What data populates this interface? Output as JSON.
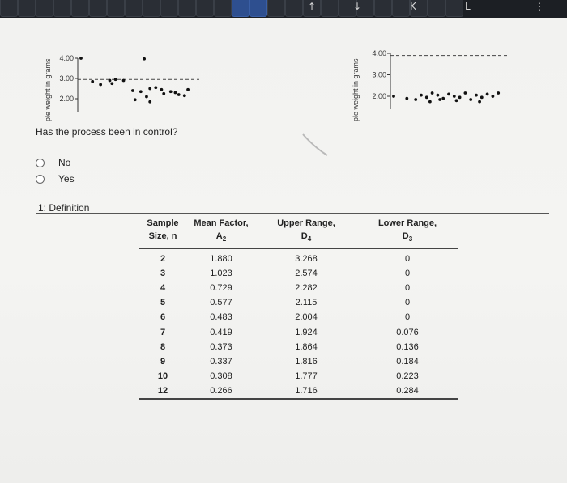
{
  "keyboard": {
    "keys": [
      "",
      "",
      "",
      "",
      "",
      "",
      "",
      "",
      "",
      "",
      "",
      "",
      "",
      "",
      "",
      "",
      "",
      "",
      "",
      "",
      "",
      "",
      "",
      "",
      "",
      ""
    ],
    "labels": [
      "↑",
      "↓",
      "K",
      "L",
      "⋮"
    ]
  },
  "plot_left": {
    "ylabel": "ple weight in grams",
    "ticks": [
      "4.00",
      "3.00",
      "2.00"
    ],
    "points": [
      [
        0.0,
        4.0
      ],
      [
        0.55,
        3.97
      ],
      [
        0.1,
        2.85
      ],
      [
        0.17,
        2.7
      ],
      [
        0.25,
        2.9
      ],
      [
        0.27,
        2.75
      ],
      [
        0.3,
        2.95
      ],
      [
        0.37,
        2.9
      ],
      [
        0.45,
        2.4
      ],
      [
        0.52,
        2.35
      ],
      [
        0.6,
        2.5
      ],
      [
        0.65,
        2.55
      ],
      [
        0.7,
        2.45
      ],
      [
        0.78,
        2.35
      ],
      [
        0.85,
        2.2
      ],
      [
        0.9,
        2.15
      ],
      [
        0.57,
        2.1
      ],
      [
        0.47,
        1.95
      ],
      [
        0.6,
        1.85
      ],
      [
        0.72,
        2.25
      ],
      [
        0.82,
        2.3
      ],
      [
        0.93,
        2.45
      ]
    ],
    "ucl": 2.95
  },
  "plot_right": {
    "ylabel": "ple weight in grams",
    "ticks": [
      "4.00",
      "3.00",
      "2.00"
    ],
    "points": [
      [
        0.0,
        2.0
      ],
      [
        0.12,
        1.9
      ],
      [
        0.2,
        1.85
      ],
      [
        0.25,
        2.05
      ],
      [
        0.3,
        1.95
      ],
      [
        0.35,
        2.15
      ],
      [
        0.4,
        2.05
      ],
      [
        0.45,
        1.9
      ],
      [
        0.5,
        2.1
      ],
      [
        0.55,
        2.0
      ],
      [
        0.6,
        1.95
      ],
      [
        0.65,
        2.15
      ],
      [
        0.7,
        1.85
      ],
      [
        0.75,
        2.05
      ],
      [
        0.8,
        1.95
      ],
      [
        0.85,
        2.1
      ],
      [
        0.9,
        2.0
      ],
      [
        0.95,
        2.15
      ],
      [
        0.33,
        1.75
      ],
      [
        0.57,
        1.8
      ],
      [
        0.78,
        1.75
      ],
      [
        0.42,
        1.85
      ]
    ],
    "ucl": 3.9
  },
  "question": {
    "text": "Has the process been in control?",
    "options": [
      "No",
      "Yes"
    ]
  },
  "definition": {
    "title": "1: Definition",
    "headers": [
      {
        "line1": "Sample",
        "line2": "Size, n",
        "sym": "",
        "sub": ""
      },
      {
        "line1": "Mean Factor,",
        "line2": "",
        "sym": "A",
        "sub": "2"
      },
      {
        "line1": "Upper Range,",
        "line2": "",
        "sym": "D",
        "sub": "4"
      },
      {
        "line1": "Lower Range,",
        "line2": "",
        "sym": "D",
        "sub": "3"
      }
    ],
    "rows": [
      [
        "2",
        "1.880",
        "3.268",
        "0"
      ],
      [
        "3",
        "1.023",
        "2.574",
        "0"
      ],
      [
        "4",
        "0.729",
        "2.282",
        "0"
      ],
      [
        "5",
        "0.577",
        "2.115",
        "0"
      ],
      [
        "6",
        "0.483",
        "2.004",
        "0"
      ],
      [
        "7",
        "0.419",
        "1.924",
        "0.076"
      ],
      [
        "8",
        "0.373",
        "1.864",
        "0.136"
      ],
      [
        "9",
        "0.337",
        "1.816",
        "0.184"
      ],
      [
        "10",
        "0.308",
        "1.777",
        "0.223"
      ],
      [
        "12",
        "0.266",
        "1.716",
        "0.284"
      ]
    ]
  }
}
